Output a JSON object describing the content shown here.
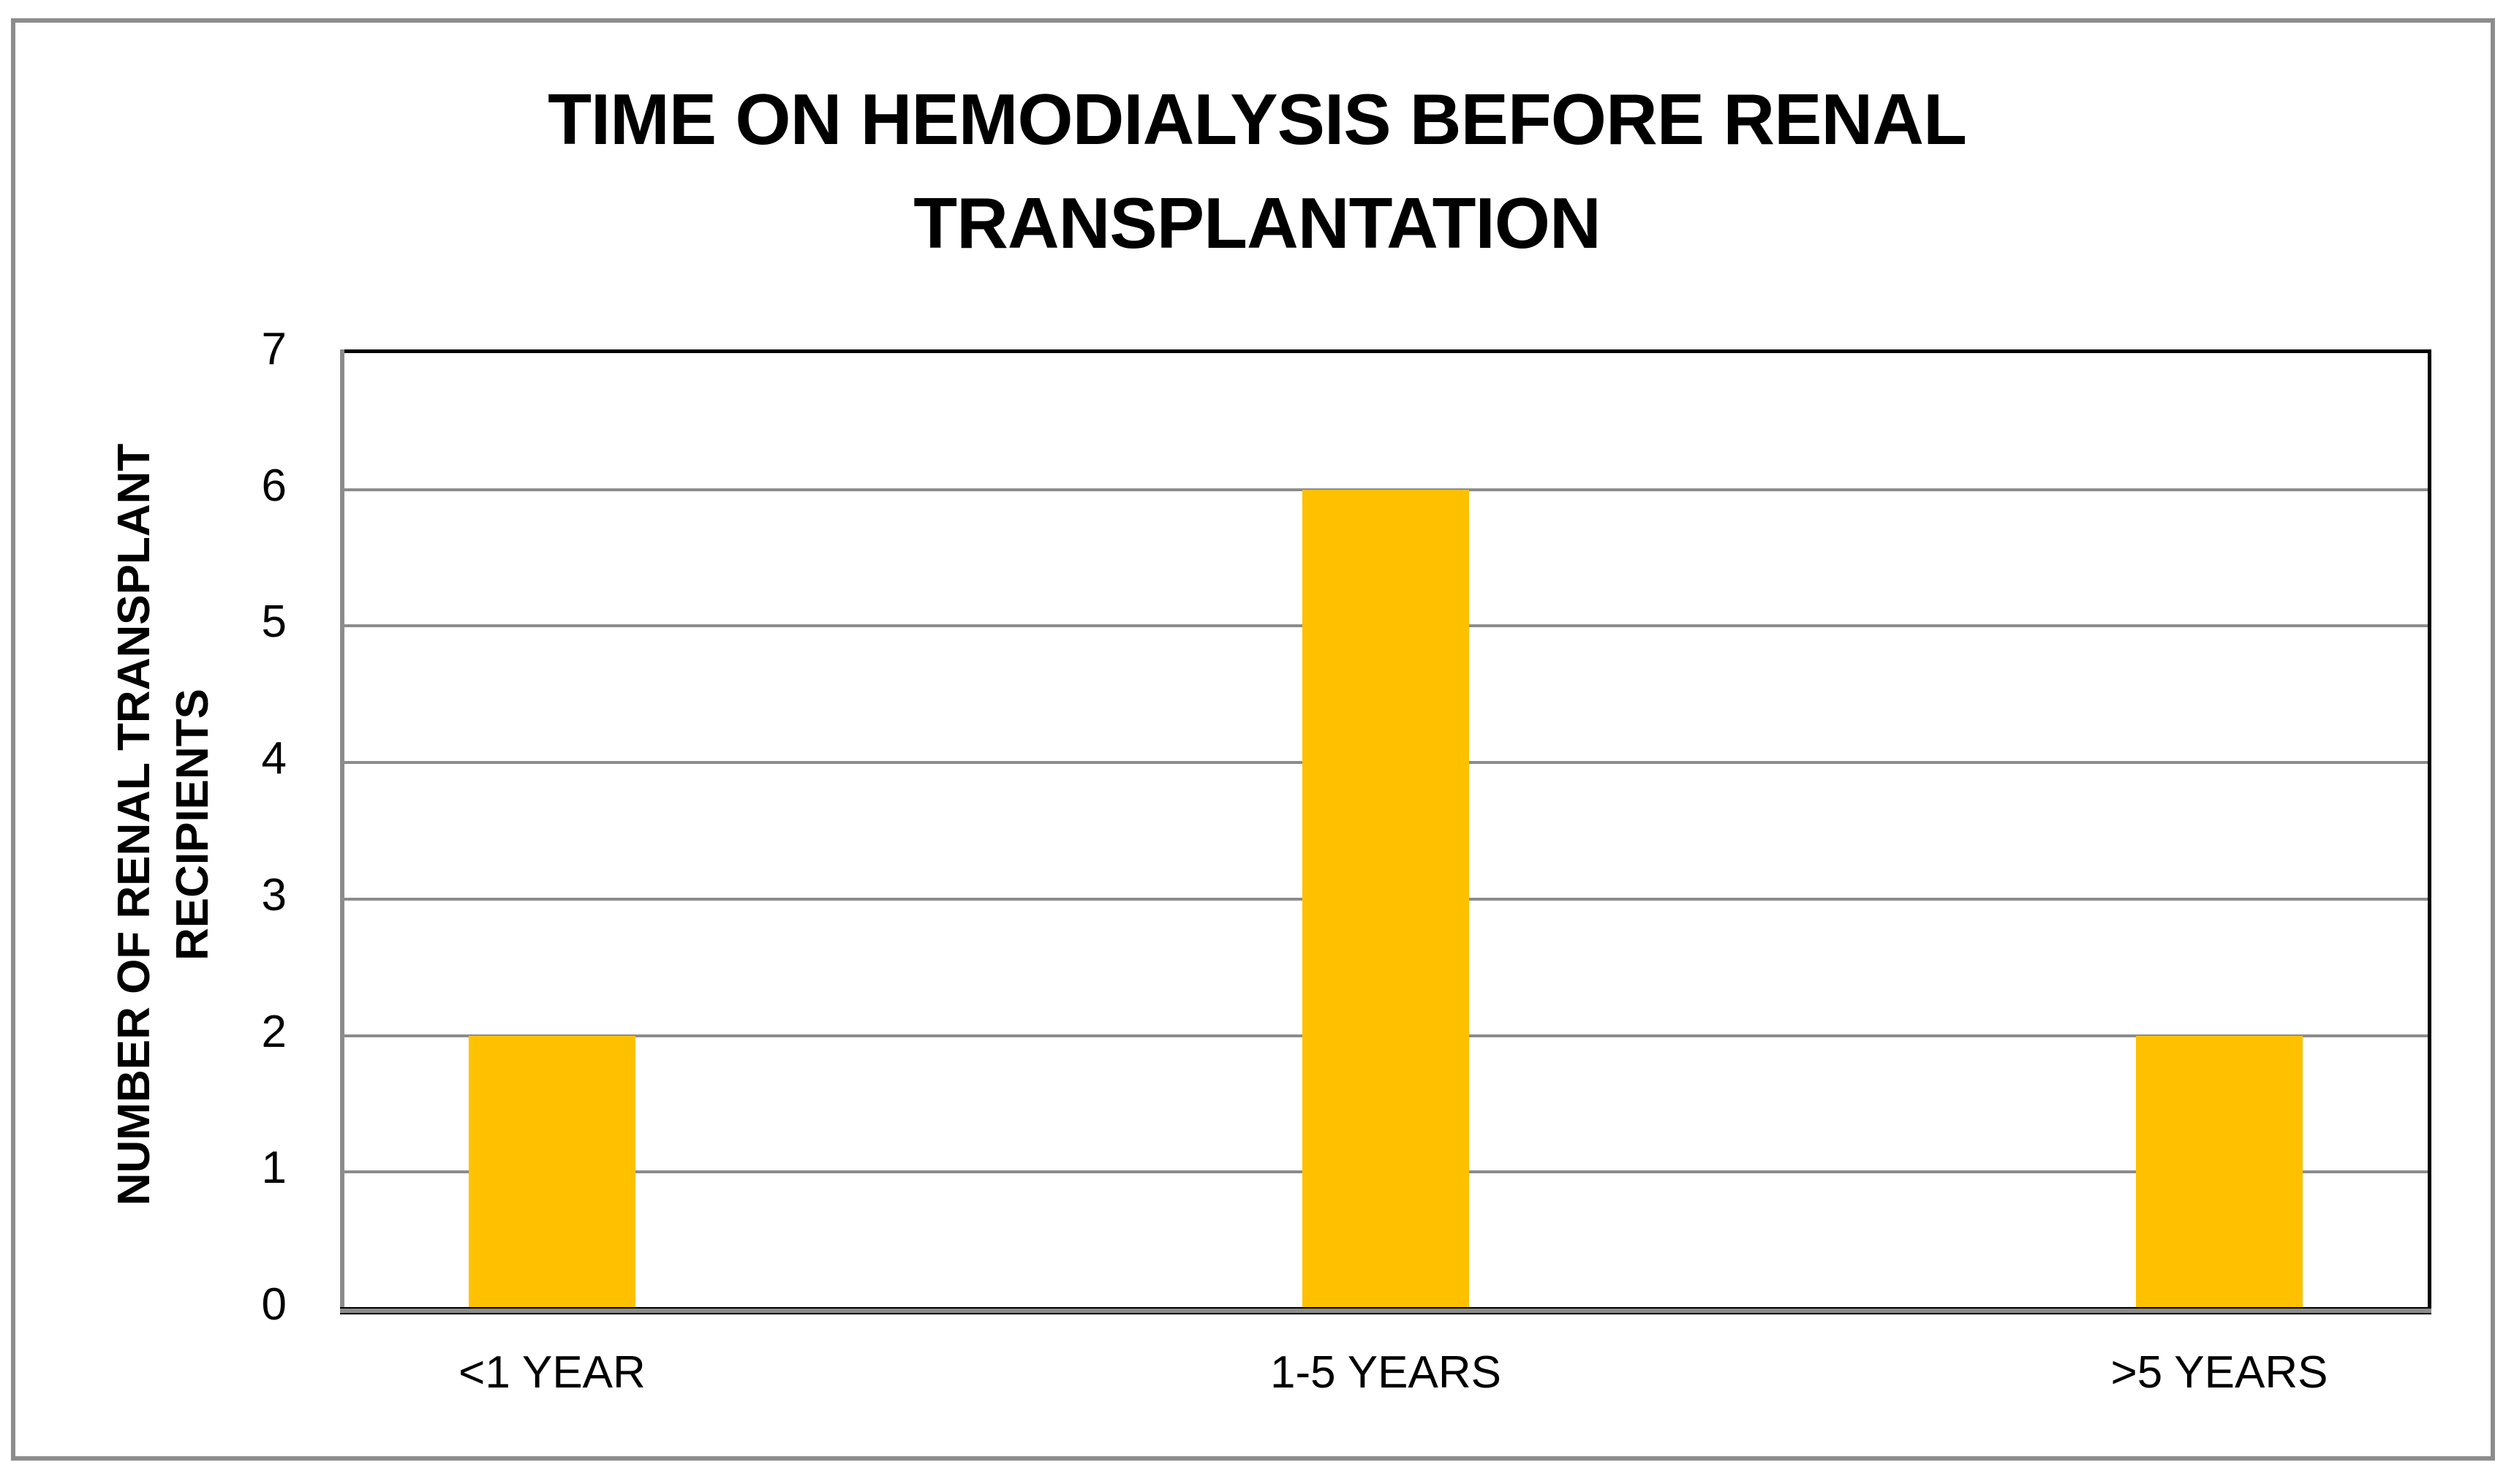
{
  "chart_data": {
    "type": "bar",
    "title": "TIME ON HEMODIALYSIS BEFORE RENAL TRANSPLANTATION",
    "title_lines": [
      "TIME ON HEMODIALYSIS BEFORE RENAL",
      "TRANSPLANTATION"
    ],
    "ylabel": "NUMBER OF RENAL TRANSPLANT RECIPIENTS",
    "ylabel_lines": [
      "NUMBER OF RENAL TRANSPLANT",
      "RECIPIENTS"
    ],
    "xlabel": "",
    "categories": [
      "<1 YEAR",
      "1-5 YEARS",
      ">5 YEARS"
    ],
    "values": [
      2,
      6,
      2
    ],
    "ylim": [
      0,
      7
    ],
    "yticks": [
      0,
      1,
      2,
      3,
      4,
      5,
      6,
      7
    ],
    "grid": true,
    "legend": false,
    "colors": {
      "bar": "#FFC000",
      "gridline": "#8C8C8C",
      "axis_line": "#8C8C8C",
      "plot_border": "#000000",
      "outer_border": "#8C8C8C",
      "text": "#000000"
    }
  }
}
